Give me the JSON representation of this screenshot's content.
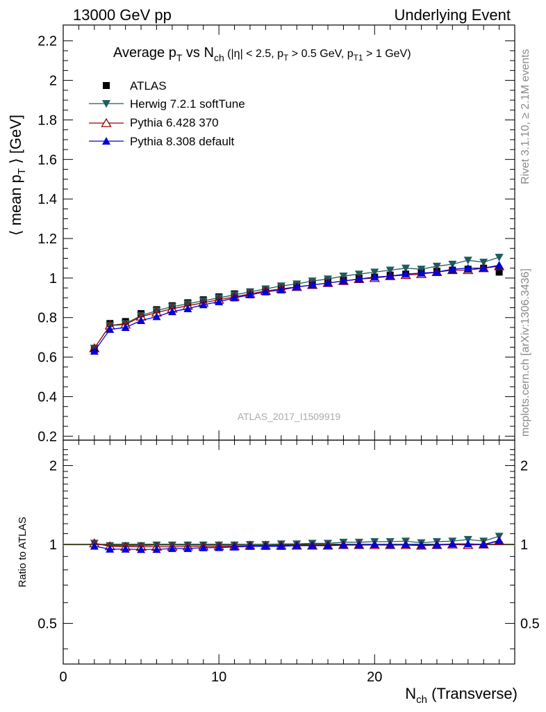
{
  "header": {
    "left": "13000 GeV pp",
    "right": "Underlying Event"
  },
  "side_text": {
    "rivet": "Rivet 3.1.10, ≥ 2.1M events",
    "mcplots": "mcplots.cern.ch [arXiv:1306.3436]"
  },
  "chart_data": [
    {
      "type": "scatter",
      "title": "Average p_T vs N_ch (|η| < 2.5, p_T > 0.5 GeV, p_T1 > 1 GeV)",
      "title_parts": {
        "a": "Average p",
        "a_sub": "T",
        "b": " vs N",
        "b_sub": "ch",
        "c": " (|η| < 2.5, p",
        "c_sub": "T",
        "d": " > 0.5 GeV, p",
        "d_sub": "T1",
        "e": " > 1 GeV)"
      },
      "ylabel": "⟨ mean p_T ⟩ [GeV]",
      "ylabel_parts": {
        "pre": "⟨ mean p",
        "sub": "T",
        "post": " ⟩ [GeV]"
      },
      "watermark": "ATLAS_2017_I1509919",
      "xlim": [
        0,
        29
      ],
      "ylim": [
        0.18,
        2.28
      ],
      "yticks": [
        0.2,
        0.4,
        0.6,
        0.8,
        1,
        1.2,
        1.4,
        1.6,
        1.8,
        2,
        2.2
      ],
      "grid": false,
      "legend_position": "top-left",
      "x": [
        2,
        3,
        4,
        5,
        6,
        7,
        8,
        9,
        10,
        11,
        12,
        13,
        14,
        15,
        16,
        17,
        18,
        19,
        20,
        21,
        22,
        23,
        24,
        25,
        26,
        27,
        28
      ],
      "series": [
        {
          "name": "ATLAS",
          "color": "#000000",
          "marker": "square",
          "values": [
            0.64,
            0.77,
            0.78,
            0.82,
            0.84,
            0.86,
            0.875,
            0.89,
            0.905,
            0.92,
            0.93,
            0.945,
            0.955,
            0.965,
            0.975,
            0.985,
            0.99,
            1.0,
            1.005,
            1.015,
            1.02,
            1.03,
            1.035,
            1.04,
            1.045,
            1.05,
            1.03
          ]
        },
        {
          "name": "Herwig 7.2.1 softTune",
          "color": "#1f5c5c",
          "marker": "triangle-down",
          "values": [
            0.645,
            0.76,
            0.77,
            0.81,
            0.835,
            0.855,
            0.87,
            0.885,
            0.9,
            0.915,
            0.93,
            0.945,
            0.96,
            0.97,
            0.985,
            0.995,
            1.01,
            1.02,
            1.03,
            1.04,
            1.05,
            1.045,
            1.06,
            1.07,
            1.09,
            1.08,
            1.105
          ]
        },
        {
          "name": "Pythia 6.428 370",
          "color": "#990000",
          "marker": "triangle-up-open",
          "values": [
            0.645,
            0.76,
            0.765,
            0.805,
            0.825,
            0.845,
            0.86,
            0.875,
            0.89,
            0.905,
            0.92,
            0.935,
            0.945,
            0.955,
            0.965,
            0.975,
            0.985,
            0.995,
            1.0,
            1.01,
            1.015,
            1.02,
            1.03,
            1.04,
            1.04,
            1.05,
            1.06
          ]
        },
        {
          "name": "Pythia 8.308 default",
          "color": "#0000dd",
          "marker": "triangle-up",
          "values": [
            0.63,
            0.74,
            0.75,
            0.785,
            0.805,
            0.83,
            0.845,
            0.865,
            0.88,
            0.9,
            0.915,
            0.93,
            0.94,
            0.955,
            0.965,
            0.975,
            0.985,
            0.995,
            1.005,
            1.01,
            1.02,
            1.025,
            1.03,
            1.045,
            1.05,
            1.05,
            1.065
          ]
        }
      ]
    },
    {
      "type": "scatter",
      "title": "",
      "xlabel": "N_ch (Transverse)",
      "xlabel_parts": {
        "pre": "N",
        "sub": "ch",
        "post": " (Transverse)"
      },
      "ylabel": "Ratio to ATLAS",
      "xlim": [
        0,
        29
      ],
      "xticks": [
        0,
        10,
        20
      ],
      "ylim": [
        0.35,
        2.5
      ],
      "y_scale": "log",
      "yticks": [
        0.5,
        1,
        2
      ],
      "reference_band_color": "#ccff66",
      "x": [
        2,
        3,
        4,
        5,
        6,
        7,
        8,
        9,
        10,
        11,
        12,
        13,
        14,
        15,
        16,
        17,
        18,
        19,
        20,
        21,
        22,
        23,
        24,
        25,
        26,
        27,
        28
      ],
      "series": [
        {
          "name": "Herwig 7.2.1 softTune",
          "color": "#1f5c5c",
          "marker": "triangle-down",
          "values": [
            1.01,
            0.99,
            0.99,
            0.99,
            0.995,
            0.995,
            0.995,
            0.995,
            0.995,
            0.995,
            1.0,
            1.0,
            1.005,
            1.005,
            1.01,
            1.01,
            1.02,
            1.02,
            1.025,
            1.025,
            1.03,
            1.015,
            1.025,
            1.03,
            1.045,
            1.03,
            1.075
          ]
        },
        {
          "name": "Pythia 6.428 370",
          "color": "#990000",
          "marker": "triangle-up-open",
          "values": [
            1.01,
            0.985,
            0.98,
            0.98,
            0.98,
            0.98,
            0.983,
            0.983,
            0.985,
            0.985,
            0.99,
            0.99,
            0.99,
            0.99,
            0.99,
            0.99,
            0.995,
            0.995,
            0.995,
            0.995,
            0.995,
            0.99,
            0.995,
            1.0,
            0.995,
            1.0,
            1.03
          ]
        },
        {
          "name": "Pythia 8.308 default",
          "color": "#0000dd",
          "marker": "triangle-up",
          "values": [
            0.985,
            0.96,
            0.96,
            0.957,
            0.958,
            0.965,
            0.965,
            0.972,
            0.973,
            0.978,
            0.984,
            0.984,
            0.984,
            0.99,
            0.99,
            0.99,
            0.995,
            0.995,
            1.0,
            0.995,
            1.0,
            0.995,
            0.995,
            1.005,
            1.005,
            1.0,
            1.035
          ]
        }
      ]
    }
  ]
}
